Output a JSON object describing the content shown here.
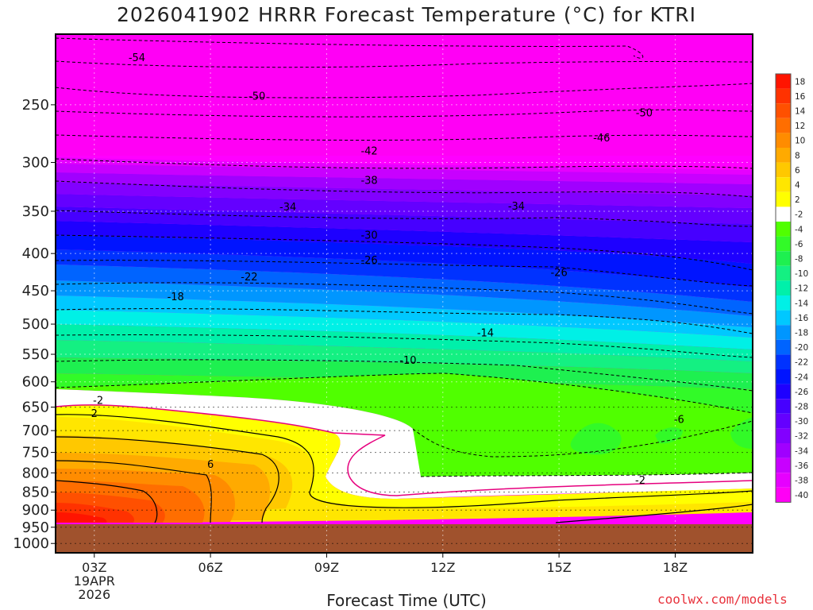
{
  "chart_data": {
    "type": "heatmap",
    "title": "2026041902 HRRR Forecast Temperature (°C) for KTRI",
    "xlabel": "Forecast Time (UTC)",
    "ylabel": "",
    "y_scale": "log-pressure",
    "x_ticks": [
      "03Z",
      "06Z",
      "09Z",
      "12Z",
      "15Z",
      "18Z"
    ],
    "x_tick_hours": [
      3,
      6,
      9,
      12,
      15,
      18
    ],
    "x_date_lines": [
      "19APR",
      "2026"
    ],
    "xlim_hours": [
      2,
      20
    ],
    "y_ticks": [
      250,
      300,
      350,
      400,
      450,
      500,
      550,
      600,
      650,
      700,
      750,
      800,
      850,
      900,
      950,
      1000
    ],
    "ylim_hPa": [
      1030,
      200
    ],
    "ground_level_hPa": 962,
    "colorbar": {
      "labels": [
        "18",
        "16",
        "14",
        "12",
        "10",
        "8",
        "6",
        "4",
        "2",
        "-2",
        "-4",
        "-6",
        "-8",
        "-10",
        "-12",
        "-14",
        "-16",
        "-18",
        "-20",
        "-22",
        "-24",
        "-26",
        "-28",
        "-30",
        "-32",
        "-34",
        "-36",
        "-38",
        "-40"
      ],
      "colors": [
        "#ff1400",
        "#ff3200",
        "#ff5000",
        "#ff6e00",
        "#ff8c00",
        "#ffaa00",
        "#ffc800",
        "#ffe600",
        "#ffff00",
        "#ffffff",
        "#50ff00",
        "#32fa28",
        "#1ef050",
        "#14f082",
        "#00f0aa",
        "#00f0e6",
        "#00c8ff",
        "#0096ff",
        "#0064ff",
        "#0032ff",
        "#0014ff",
        "#1e00ff",
        "#4600ff",
        "#6400ff",
        "#8200ff",
        "#a000ff",
        "#c800ff",
        "#e600ff",
        "#ff00f5"
      ]
    },
    "contour_labels": [
      {
        "text": "-54",
        "hour": 4.1,
        "hPa": 215
      },
      {
        "text": "-50",
        "hour": 7.2,
        "hPa": 243
      },
      {
        "text": "-50",
        "hour": 17.2,
        "hPa": 256
      },
      {
        "text": "-46",
        "hour": 16.1,
        "hPa": 277
      },
      {
        "text": "-42",
        "hour": 10.1,
        "hPa": 289
      },
      {
        "text": "-38",
        "hour": 10.1,
        "hPa": 317
      },
      {
        "text": "-34",
        "hour": 8.0,
        "hPa": 345
      },
      {
        "text": "-34",
        "hour": 13.9,
        "hPa": 344
      },
      {
        "text": "-30",
        "hour": 10.1,
        "hPa": 377
      },
      {
        "text": "-26",
        "hour": 10.1,
        "hPa": 408
      },
      {
        "text": "-26",
        "hour": 15.0,
        "hPa": 424
      },
      {
        "text": "-22",
        "hour": 7.0,
        "hPa": 430
      },
      {
        "text": "-18",
        "hour": 5.1,
        "hPa": 458
      },
      {
        "text": "-14",
        "hour": 13.1,
        "hPa": 513
      },
      {
        "text": "-10",
        "hour": 11.1,
        "hPa": 560
      },
      {
        "text": "-6",
        "hour": 18.1,
        "hPa": 675
      },
      {
        "text": "-2",
        "hour": 3.1,
        "hPa": 635
      },
      {
        "text": "2",
        "hour": 3.0,
        "hPa": 662
      },
      {
        "text": "6",
        "hour": 6.0,
        "hPa": 778
      },
      {
        "text": "-2",
        "hour": 17.1,
        "hPa": 818
      }
    ]
  },
  "watermark": "coolwx.com/models"
}
